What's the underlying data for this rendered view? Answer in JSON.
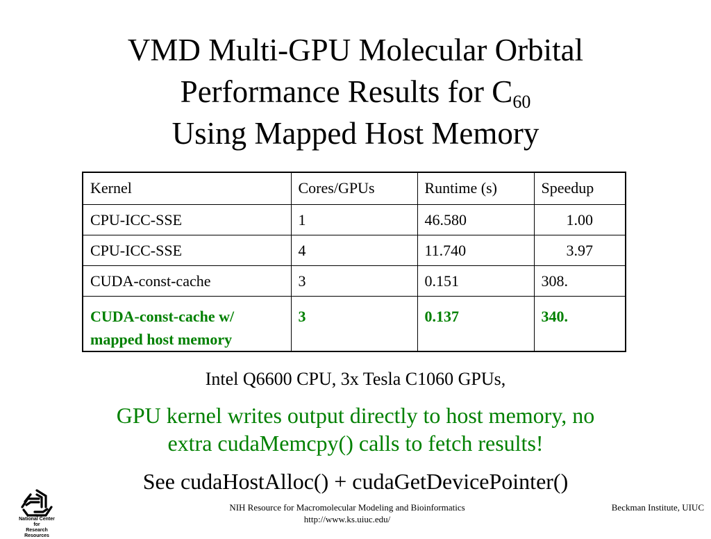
{
  "slide": {
    "title_line1": "VMD Multi-GPU Molecular Orbital",
    "title_line2_text": "Performance Results for C",
    "title_line2_sub": "60",
    "title_line3": "Using Mapped Host Memory"
  },
  "table": {
    "headers": [
      "Kernel",
      "Cores/GPUs",
      "Runtime (s)",
      "Speedup"
    ],
    "rows": [
      [
        "CPU-ICC-SSE",
        "1",
        "46.580",
        "1.00"
      ],
      [
        "CPU-ICC-SSE",
        "4",
        "11.740",
        "3.97"
      ],
      [
        "CUDA-const-cache",
        "3",
        "0.151",
        "308."
      ]
    ],
    "highlight_row": {
      "kernel_line1": "CUDA-const-cache w/",
      "kernel_line2": "mapped host memory",
      "cores": "3",
      "runtime": "0.137",
      "speedup": "340."
    }
  },
  "notes": {
    "hardware": "Intel Q6600 CPU, 3x Tesla C1060 GPUs,",
    "highlight_line1": "GPU kernel writes output directly to host memory, no",
    "highlight_line2": "extra cudaMemcpy() calls to fetch results!",
    "see_also": "See cudaHostAlloc() + cudaGetDevicePointer()"
  },
  "footer": {
    "logo_text_line1": "National Center for",
    "logo_text_line2": "Research Resources",
    "center_line1": "NIH Resource for Macromolecular Modeling and Bioinformatics",
    "center_line2": "http://www.ks.uiuc.edu/",
    "right": "Beckman Institute, UIUC"
  },
  "colors": {
    "highlight": "#008000",
    "text": "#000000",
    "background": "#ffffff"
  }
}
